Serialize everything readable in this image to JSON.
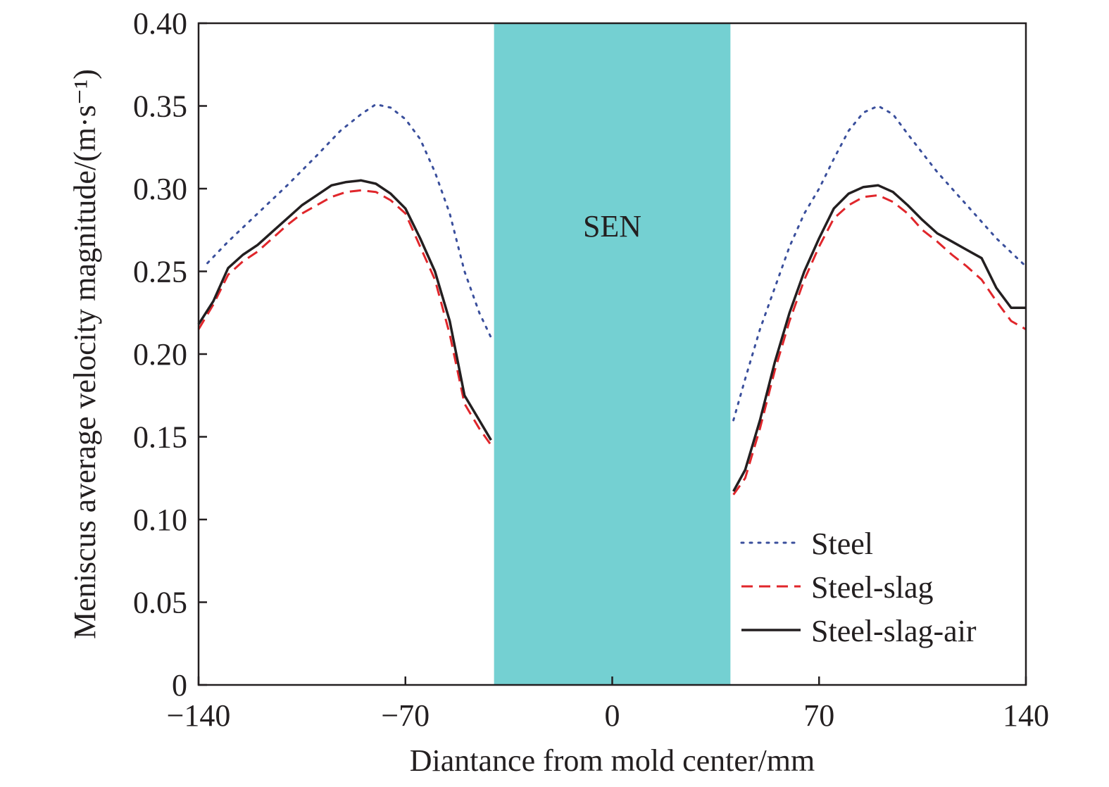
{
  "chart_data": {
    "type": "line",
    "title": "",
    "xlabel": "Diantance from mold center/mm",
    "ylabel": "Meniscus average velocity magnitude/(m·s⁻¹)",
    "xlim": [
      -140,
      140
    ],
    "ylim": [
      0,
      0.4
    ],
    "xticks": [
      -140,
      -70,
      0,
      70,
      140
    ],
    "xtick_labels": [
      "−140",
      "−70",
      "0",
      "70",
      "140"
    ],
    "yticks": [
      0,
      0.05,
      0.1,
      0.15,
      0.2,
      0.25,
      0.3,
      0.35,
      0.4
    ],
    "ytick_labels": [
      "0",
      "0.05",
      "0.10",
      "0.15",
      "0.20",
      "0.25",
      "0.30",
      "0.35",
      "0.40"
    ],
    "grid": false,
    "legend_position": "bottom-right",
    "colors": {
      "band": "#74d0d2",
      "axis": "#231f20"
    },
    "annotations": [
      {
        "text": "SEN",
        "x_range": [
          -40,
          40
        ],
        "y": 0.3
      }
    ],
    "series": [
      {
        "name": "Steel",
        "style": "dotted",
        "color": "#3a4f9c",
        "segments": [
          [
            [
              -137,
              0.255
            ],
            [
              -130,
              0.268
            ],
            [
              -120,
              0.285
            ],
            [
              -110,
              0.302
            ],
            [
              -100,
              0.32
            ],
            [
              -92,
              0.335
            ],
            [
              -85,
              0.345
            ],
            [
              -80,
              0.351
            ],
            [
              -75,
              0.349
            ],
            [
              -70,
              0.342
            ],
            [
              -65,
              0.33
            ],
            [
              -60,
              0.31
            ],
            [
              -55,
              0.285
            ],
            [
              -50,
              0.25
            ],
            [
              -45,
              0.225
            ],
            [
              -41,
              0.21
            ]
          ],
          [
            [
              41,
              0.16
            ],
            [
              45,
              0.185
            ],
            [
              50,
              0.215
            ],
            [
              55,
              0.24
            ],
            [
              60,
              0.265
            ],
            [
              65,
              0.285
            ],
            [
              70,
              0.3
            ],
            [
              75,
              0.318
            ],
            [
              80,
              0.335
            ],
            [
              85,
              0.346
            ],
            [
              90,
              0.35
            ],
            [
              95,
              0.345
            ],
            [
              100,
              0.333
            ],
            [
              110,
              0.31
            ],
            [
              120,
              0.29
            ],
            [
              130,
              0.27
            ],
            [
              140,
              0.253
            ]
          ]
        ]
      },
      {
        "name": "Steel-slag",
        "style": "dashed",
        "color": "#e0262b",
        "segments": [
          [
            [
              -140,
              0.215
            ],
            [
              -135,
              0.23
            ],
            [
              -130,
              0.248
            ],
            [
              -125,
              0.256
            ],
            [
              -120,
              0.262
            ],
            [
              -115,
              0.27
            ],
            [
              -110,
              0.278
            ],
            [
              -105,
              0.285
            ],
            [
              -100,
              0.29
            ],
            [
              -95,
              0.295
            ],
            [
              -90,
              0.298
            ],
            [
              -85,
              0.299
            ],
            [
              -80,
              0.298
            ],
            [
              -75,
              0.293
            ],
            [
              -70,
              0.285
            ],
            [
              -65,
              0.265
            ],
            [
              -60,
              0.245
            ],
            [
              -55,
              0.212
            ],
            [
              -50,
              0.17
            ],
            [
              -45,
              0.155
            ],
            [
              -41,
              0.145
            ]
          ],
          [
            [
              41,
              0.115
            ],
            [
              45,
              0.125
            ],
            [
              50,
              0.155
            ],
            [
              55,
              0.19
            ],
            [
              60,
              0.22
            ],
            [
              65,
              0.245
            ],
            [
              70,
              0.265
            ],
            [
              75,
              0.282
            ],
            [
              80,
              0.29
            ],
            [
              85,
              0.295
            ],
            [
              90,
              0.296
            ],
            [
              95,
              0.292
            ],
            [
              100,
              0.285
            ],
            [
              105,
              0.275
            ],
            [
              110,
              0.268
            ],
            [
              115,
              0.26
            ],
            [
              120,
              0.253
            ],
            [
              125,
              0.245
            ],
            [
              130,
              0.232
            ],
            [
              135,
              0.22
            ],
            [
              140,
              0.215
            ]
          ]
        ]
      },
      {
        "name": "Steel-slag-air",
        "style": "solid",
        "color": "#231f20",
        "segments": [
          [
            [
              -140,
              0.218
            ],
            [
              -135,
              0.232
            ],
            [
              -130,
              0.252
            ],
            [
              -125,
              0.26
            ],
            [
              -120,
              0.266
            ],
            [
              -115,
              0.274
            ],
            [
              -110,
              0.282
            ],
            [
              -105,
              0.29
            ],
            [
              -100,
              0.296
            ],
            [
              -95,
              0.302
            ],
            [
              -90,
              0.304
            ],
            [
              -85,
              0.305
            ],
            [
              -80,
              0.303
            ],
            [
              -75,
              0.297
            ],
            [
              -70,
              0.288
            ],
            [
              -65,
              0.27
            ],
            [
              -60,
              0.25
            ],
            [
              -55,
              0.22
            ],
            [
              -50,
              0.175
            ],
            [
              -45,
              0.16
            ],
            [
              -41,
              0.148
            ]
          ],
          [
            [
              41,
              0.117
            ],
            [
              45,
              0.13
            ],
            [
              50,
              0.16
            ],
            [
              55,
              0.195
            ],
            [
              60,
              0.225
            ],
            [
              65,
              0.25
            ],
            [
              70,
              0.27
            ],
            [
              75,
              0.288
            ],
            [
              80,
              0.297
            ],
            [
              85,
              0.301
            ],
            [
              90,
              0.302
            ],
            [
              95,
              0.298
            ],
            [
              100,
              0.29
            ],
            [
              105,
              0.281
            ],
            [
              110,
              0.273
            ],
            [
              115,
              0.268
            ],
            [
              120,
              0.263
            ],
            [
              125,
              0.258
            ],
            [
              130,
              0.24
            ],
            [
              135,
              0.228
            ],
            [
              140,
              0.228
            ]
          ]
        ]
      }
    ]
  }
}
